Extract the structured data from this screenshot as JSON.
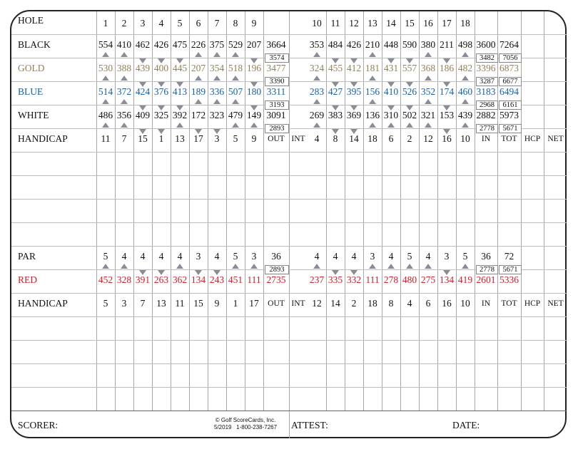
{
  "colors": {
    "gold": "#9a7f4e",
    "blue": "#1b5fa8",
    "red": "#d0202c",
    "text": "#111111",
    "marker": "#8c8c98"
  },
  "hole_row": {
    "label": "HOLE",
    "front": [
      "1",
      "2",
      "3",
      "4",
      "5",
      "6",
      "7",
      "8",
      "9"
    ],
    "back": [
      "10",
      "11",
      "12",
      "13",
      "14",
      "15",
      "16",
      "17",
      "18"
    ]
  },
  "tees": [
    {
      "name": "BLACK",
      "color": "#111111",
      "front": [
        "554",
        "410",
        "462",
        "426",
        "475",
        "226",
        "375",
        "529",
        "207"
      ],
      "out": "3664",
      "back": [
        "353",
        "484",
        "426",
        "210",
        "448",
        "590",
        "380",
        "211",
        "498"
      ],
      "in": "3600",
      "tot": "7264"
    },
    {
      "name": "GOLD",
      "color": "#9a7f4e",
      "front": [
        "530",
        "388",
        "439",
        "400",
        "445",
        "207",
        "354",
        "518",
        "196"
      ],
      "out": "3477",
      "back": [
        "324",
        "455",
        "412",
        "181",
        "431",
        "557",
        "368",
        "186",
        "482"
      ],
      "in": "3396",
      "tot": "6873"
    },
    {
      "name": "BLUE",
      "color": "#1b5fa8",
      "front": [
        "514",
        "372",
        "424",
        "376",
        "413",
        "189",
        "336",
        "507",
        "180"
      ],
      "out": "3311",
      "back": [
        "283",
        "427",
        "395",
        "156",
        "410",
        "526",
        "352",
        "174",
        "460"
      ],
      "in": "3183",
      "tot": "6494"
    },
    {
      "name": "WHITE",
      "color": "#111111",
      "front": [
        "486",
        "356",
        "409",
        "325",
        "392",
        "172",
        "323",
        "479",
        "149"
      ],
      "out": "3091",
      "back": [
        "269",
        "383",
        "369",
        "136",
        "310",
        "502",
        "321",
        "153",
        "439"
      ],
      "in": "2882",
      "tot": "5973"
    }
  ],
  "handicap_mens": {
    "label": "HANDICAP",
    "front": [
      "11",
      "7",
      "15",
      "1",
      "13",
      "17",
      "3",
      "5",
      "9"
    ],
    "out": "OUT",
    "int": "INT",
    "back": [
      "4",
      "8",
      "14",
      "18",
      "6",
      "2",
      "12",
      "16",
      "10"
    ],
    "in": "IN",
    "tot": "TOT",
    "hcp": "HCP",
    "net": "NET"
  },
  "par": {
    "label": "PAR",
    "front": [
      "5",
      "4",
      "4",
      "4",
      "4",
      "3",
      "4",
      "5",
      "3"
    ],
    "out": "36",
    "back": [
      "4",
      "4",
      "4",
      "3",
      "4",
      "5",
      "4",
      "3",
      "5"
    ],
    "in": "36",
    "tot": "72"
  },
  "red": {
    "name": "RED",
    "color": "#d0202c",
    "front": [
      "452",
      "328",
      "391",
      "263",
      "362",
      "134",
      "243",
      "451",
      "111"
    ],
    "out": "2735",
    "back": [
      "237",
      "335",
      "332",
      "111",
      "278",
      "480",
      "275",
      "134",
      "419"
    ],
    "in": "2601",
    "tot": "5336"
  },
  "handicap_ladies": {
    "label": "HANDICAP",
    "front": [
      "5",
      "3",
      "7",
      "13",
      "11",
      "15",
      "9",
      "1",
      "17"
    ],
    "out": "OUT",
    "int": "INT",
    "back": [
      "12",
      "14",
      "2",
      "18",
      "8",
      "4",
      "6",
      "16",
      "10"
    ],
    "in": "IN",
    "tot": "TOT",
    "hcp": "HCP",
    "net": "NET"
  },
  "combo_totals": [
    {
      "after": "BLACK",
      "out": "3574",
      "in": "3482",
      "tot": "7056"
    },
    {
      "after": "GOLD",
      "out": "3390",
      "in": "3287",
      "tot": "6677"
    },
    {
      "after": "BLUE",
      "out": "3193",
      "in": "2968",
      "tot": "6161"
    },
    {
      "after": "WHITE",
      "out": "2893",
      "in": "2778",
      "tot": "5671"
    },
    {
      "after": "PAR",
      "out": "2893",
      "in": "2778",
      "tot": "5671"
    }
  ],
  "tee_markers": [
    [
      "up",
      "up",
      "down",
      "down",
      "down",
      "up",
      "up",
      "up",
      "down",
      "up",
      "down",
      "down",
      "up",
      "down",
      "down",
      "up",
      "down",
      "up"
    ],
    [
      "up",
      "up",
      "down",
      "down",
      "down",
      "up",
      "up",
      "up",
      "down",
      "up",
      "down",
      "down",
      "up",
      "down",
      "down",
      "up",
      "down",
      "up"
    ],
    [
      "up",
      "up",
      "down",
      "down",
      "down",
      "up",
      "up",
      "up",
      "down",
      "up",
      "down",
      "down",
      "up",
      "down",
      "down",
      "up",
      "down",
      "up"
    ],
    [
      "up",
      "up",
      "down",
      "down",
      "up",
      "down",
      "down",
      "up",
      "up",
      "up",
      "down",
      "down",
      "up",
      "up",
      "up",
      "up",
      "down",
      "up"
    ],
    [
      "up",
      "up",
      "down",
      "down",
      "up",
      "down",
      "down",
      "up",
      "up",
      "up",
      "down",
      "down",
      "up",
      "up",
      "up",
      "up",
      "down",
      "up"
    ]
  ],
  "footer": {
    "scorer": "SCORER:",
    "copyright": "© Golf ScoreCards, Inc.",
    "printed": "5/2019   1-800-238-7267",
    "attest": "ATTEST:",
    "date": "DATE:"
  }
}
